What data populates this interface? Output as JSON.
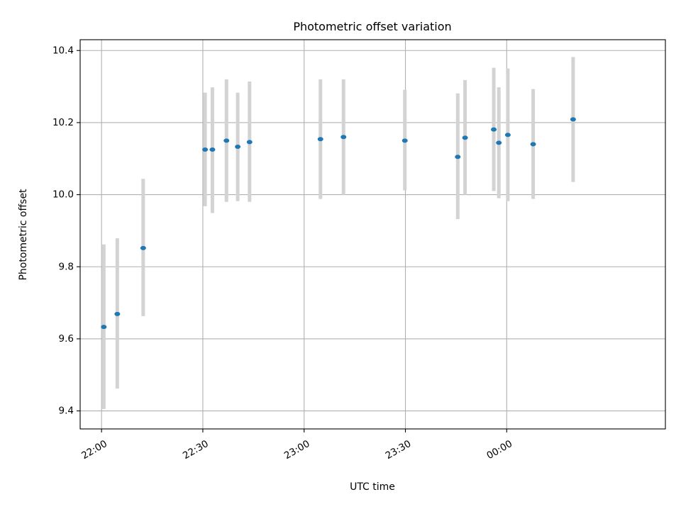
{
  "chart_data": {
    "type": "scatter",
    "title": "Photometric offset variation",
    "xlabel": "UTC time",
    "ylabel": "Photometric offset",
    "x_axis_type": "time",
    "xlim": [
      "21:53:40",
      "00:47:00"
    ],
    "ylim": [
      9.35,
      10.43
    ],
    "x_ticks": [
      "22:00",
      "22:30",
      "23:00",
      "23:30",
      "00:00"
    ],
    "y_ticks": [
      "9.4",
      "9.6",
      "9.8",
      "10.0",
      "10.2",
      "10.4"
    ],
    "grid": true,
    "marker_color": "#1f77b4",
    "errorbar_color": "#d3d3d3",
    "series": [
      {
        "points": [
          {
            "time": "22:00:40",
            "y": 9.633,
            "y_low": 9.405,
            "y_high": 9.862
          },
          {
            "time": "22:04:40",
            "y": 9.669,
            "y_low": 9.462,
            "y_high": 9.879
          },
          {
            "time": "22:12:20",
            "y": 9.852,
            "y_low": 9.663,
            "y_high": 10.044
          },
          {
            "time": "22:30:40",
            "y": 10.125,
            "y_low": 9.968,
            "y_high": 10.283
          },
          {
            "time": "22:32:50",
            "y": 10.125,
            "y_low": 9.949,
            "y_high": 10.298
          },
          {
            "time": "22:37:00",
            "y": 10.15,
            "y_low": 9.98,
            "y_high": 10.32
          },
          {
            "time": "22:40:20",
            "y": 10.133,
            "y_low": 9.982,
            "y_high": 10.283
          },
          {
            "time": "22:43:50",
            "y": 10.146,
            "y_low": 9.98,
            "y_high": 10.314
          },
          {
            "time": "23:04:50",
            "y": 10.154,
            "y_low": 9.988,
            "y_high": 10.32
          },
          {
            "time": "23:11:40",
            "y": 10.16,
            "y_low": 10.0,
            "y_high": 10.32
          },
          {
            "time": "23:29:50",
            "y": 10.15,
            "y_low": 10.012,
            "y_high": 10.291
          },
          {
            "time": "23:45:30",
            "y": 10.105,
            "y_low": 9.932,
            "y_high": 10.281
          },
          {
            "time": "23:47:40",
            "y": 10.158,
            "y_low": 10.0,
            "y_high": 10.318
          },
          {
            "time": "23:56:10",
            "y": 10.181,
            "y_low": 10.01,
            "y_high": 10.352
          },
          {
            "time": "23:57:40",
            "y": 10.144,
            "y_low": 9.99,
            "y_high": 10.298
          },
          {
            "time": "00:00:20",
            "y": 10.166,
            "y_low": 9.982,
            "y_high": 10.35
          },
          {
            "time": "00:07:50",
            "y": 10.14,
            "y_low": 9.988,
            "y_high": 10.293
          },
          {
            "time": "00:19:40",
            "y": 10.209,
            "y_low": 10.035,
            "y_high": 10.382
          }
        ]
      }
    ]
  }
}
